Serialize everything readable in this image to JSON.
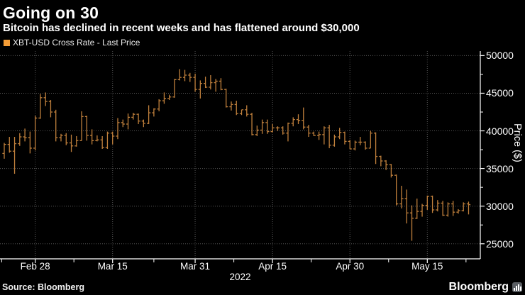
{
  "header": {
    "title": "Going on 30",
    "subtitle": "Bitcoin has declined in recent weeks and has flattened around $30,000"
  },
  "legend": {
    "swatch_color": "#f49d37",
    "label": "XBT-USD Cross Rate - Last Price"
  },
  "footer": {
    "source": "Source: Bloomberg",
    "brand": "Bloomberg"
  },
  "chart_data": {
    "type": "bar",
    "subtype": "ohlc-bars",
    "title": "Going on 30",
    "series_name": "XBT-USD Cross Rate - Last Price",
    "xlabel": "",
    "ylabel": "Price ($)",
    "year_label": "2022",
    "x_start_date": "2022-02-22",
    "frequency": "daily",
    "ylim": [
      23000,
      50600
    ],
    "y_ticks": [
      25000,
      30000,
      35000,
      40000,
      45000,
      50000
    ],
    "y_minor_ticks": [
      27500,
      32500,
      37500,
      42500,
      47500
    ],
    "x_tick_labels": [
      "Feb 28",
      "Mar 15",
      "Mar 31",
      "Apr 15",
      "Apr 30",
      "May 15"
    ],
    "x_tick_day_index": [
      6,
      21,
      37,
      52,
      67,
      82
    ],
    "x_minor_day_index": [
      -0.5,
      13.5,
      29,
      44.5,
      59.5,
      74.5,
      89.5
    ],
    "grid": true,
    "legend_position": "top-left",
    "bar_color": "#c0803c",
    "grid_color": "#565656",
    "axis_color": "#ffffff",
    "ohlc_thousands": [
      [
        37.0,
        38.4,
        36.3,
        38.2
      ],
      [
        38.2,
        39.2,
        37.1,
        37.3
      ],
      [
        37.3,
        39.2,
        34.3,
        38.3
      ],
      [
        38.3,
        39.7,
        38.0,
        39.2
      ],
      [
        39.2,
        40.3,
        38.6,
        39.1
      ],
      [
        39.1,
        39.9,
        37.0,
        37.7
      ],
      [
        37.7,
        42.0,
        37.4,
        41.7
      ],
      [
        41.7,
        44.9,
        41.6,
        44.4
      ],
      [
        44.4,
        45.1,
        43.3,
        43.9
      ],
      [
        43.9,
        44.1,
        41.8,
        42.5
      ],
      [
        42.5,
        42.8,
        38.6,
        39.1
      ],
      [
        39.1,
        39.6,
        38.6,
        39.4
      ],
      [
        39.4,
        39.7,
        38.1,
        38.4
      ],
      [
        38.4,
        39.5,
        37.2,
        38.0
      ],
      [
        38.0,
        39.3,
        37.9,
        38.7
      ],
      [
        38.7,
        42.6,
        38.7,
        41.9
      ],
      [
        41.9,
        42.0,
        38.7,
        39.4
      ],
      [
        39.4,
        40.2,
        38.2,
        38.7
      ],
      [
        38.7,
        39.4,
        38.6,
        38.8
      ],
      [
        38.8,
        39.3,
        37.6,
        37.8
      ],
      [
        37.8,
        39.9,
        37.6,
        39.7
      ],
      [
        39.7,
        39.9,
        38.2,
        39.3
      ],
      [
        39.3,
        41.7,
        38.9,
        41.1
      ],
      [
        41.1,
        41.5,
        40.5,
        40.9
      ],
      [
        40.9,
        42.3,
        40.2,
        41.8
      ],
      [
        41.8,
        42.4,
        41.5,
        42.2
      ],
      [
        42.2,
        42.3,
        40.9,
        41.3
      ],
      [
        41.3,
        41.5,
        40.5,
        41.0
      ],
      [
        41.0,
        43.4,
        40.9,
        42.4
      ],
      [
        42.4,
        43.0,
        41.9,
        42.9
      ],
      [
        42.9,
        44.2,
        42.6,
        44.0
      ],
      [
        44.0,
        45.1,
        43.6,
        44.3
      ],
      [
        44.3,
        44.8,
        44.1,
        44.5
      ],
      [
        44.5,
        46.9,
        44.4,
        46.8
      ],
      [
        46.8,
        48.2,
        46.7,
        47.1
      ],
      [
        47.1,
        48.1,
        46.6,
        47.4
      ],
      [
        47.4,
        47.7,
        46.5,
        47.1
      ],
      [
        47.1,
        47.6,
        45.2,
        45.5
      ],
      [
        45.5,
        46.7,
        44.3,
        46.3
      ],
      [
        46.3,
        47.2,
        45.7,
        45.8
      ],
      [
        45.8,
        47.4,
        45.5,
        46.4
      ],
      [
        46.4,
        46.9,
        45.2,
        46.6
      ],
      [
        46.6,
        47.0,
        45.4,
        45.5
      ],
      [
        45.5,
        45.6,
        43.1,
        43.2
      ],
      [
        43.2,
        43.9,
        42.7,
        43.5
      ],
      [
        43.5,
        44.0,
        42.1,
        42.3
      ],
      [
        42.3,
        42.8,
        42.1,
        42.8
      ],
      [
        42.8,
        43.4,
        41.9,
        42.2
      ],
      [
        42.2,
        42.4,
        39.4,
        39.5
      ],
      [
        39.5,
        40.7,
        39.3,
        40.1
      ],
      [
        40.1,
        41.5,
        39.6,
        41.1
      ],
      [
        41.1,
        41.5,
        39.6,
        39.9
      ],
      [
        39.9,
        40.9,
        39.8,
        40.4
      ],
      [
        40.4,
        40.6,
        40.0,
        40.4
      ],
      [
        40.4,
        40.6,
        39.5,
        39.7
      ],
      [
        39.7,
        41.1,
        38.6,
        41.0
      ],
      [
        41.0,
        41.8,
        40.6,
        41.5
      ],
      [
        41.5,
        42.2,
        40.9,
        41.4
      ],
      [
        41.4,
        43.1,
        40.2,
        40.5
      ],
      [
        40.5,
        40.8,
        39.2,
        39.7
      ],
      [
        39.7,
        39.9,
        39.3,
        39.4
      ],
      [
        39.4,
        39.9,
        38.8,
        39.5
      ],
      [
        39.5,
        40.6,
        38.2,
        40.4
      ],
      [
        40.4,
        40.8,
        37.7,
        38.1
      ],
      [
        38.1,
        39.5,
        37.9,
        39.2
      ],
      [
        39.2,
        40.4,
        38.9,
        39.8
      ],
      [
        39.8,
        39.9,
        38.2,
        38.6
      ],
      [
        38.6,
        38.8,
        37.6,
        37.6
      ],
      [
        37.6,
        38.7,
        37.4,
        38.5
      ],
      [
        38.5,
        39.2,
        38.1,
        38.5
      ],
      [
        38.5,
        38.6,
        37.5,
        37.7
      ],
      [
        37.7,
        40.0,
        37.7,
        39.7
      ],
      [
        39.7,
        39.8,
        35.6,
        36.6
      ],
      [
        36.6,
        36.7,
        35.3,
        36.0
      ],
      [
        36.0,
        36.1,
        34.8,
        35.5
      ],
      [
        35.5,
        35.6,
        33.8,
        34.1
      ],
      [
        34.1,
        34.2,
        30.1,
        30.3
      ],
      [
        30.3,
        32.7,
        29.7,
        31.0
      ],
      [
        31.0,
        32.2,
        27.7,
        29.1
      ],
      [
        29.1,
        30.1,
        25.4,
        28.4
      ],
      [
        28.4,
        31.0,
        28.3,
        29.3
      ],
      [
        29.3,
        30.3,
        28.6,
        30.1
      ],
      [
        30.1,
        31.4,
        29.5,
        31.3
      ],
      [
        31.3,
        31.4,
        29.1,
        29.5
      ],
      [
        29.5,
        30.8,
        29.3,
        30.4
      ],
      [
        30.4,
        30.7,
        28.7,
        28.8
      ],
      [
        28.8,
        30.5,
        28.6,
        30.3
      ],
      [
        30.3,
        30.7,
        28.7,
        29.2
      ],
      [
        29.2,
        29.6,
        29.0,
        29.4
      ],
      [
        29.4,
        30.5,
        29.3,
        30.3
      ],
      [
        30.3,
        30.6,
        28.9,
        30.2
      ]
    ]
  }
}
